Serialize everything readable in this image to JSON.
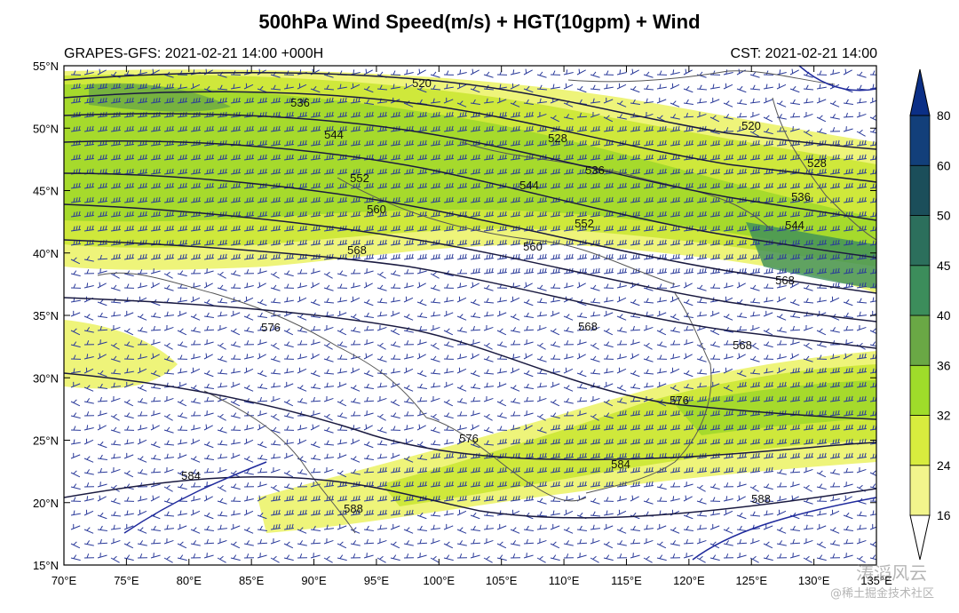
{
  "header": {
    "title": "500hPa Wind Speed(m/s) + HGT(10gpm) + Wind",
    "left_subtitle": "GRAPES-GFS: 2021-02-21 14:00 +000H",
    "right_subtitle": "CST: 2021-02-21 14:00"
  },
  "axes": {
    "lon_ticks": [
      "70°E",
      "75°E",
      "80°E",
      "85°E",
      "90°E",
      "95°E",
      "100°E",
      "105°E",
      "110°E",
      "115°E",
      "120°E",
      "125°E",
      "130°E",
      "135°E"
    ],
    "lat_ticks": [
      "55°N",
      "50°N",
      "45°N",
      "40°N",
      "35°N",
      "30°N",
      "25°N",
      "20°N",
      "15°N"
    ],
    "lon_range": [
      70,
      135
    ],
    "lat_range": [
      15,
      55
    ]
  },
  "colorbar": {
    "levels": [
      "16",
      "24",
      "32",
      "36",
      "40",
      "45",
      "50",
      "60",
      "80"
    ],
    "colors": [
      "#ffffff",
      "#f2f58c",
      "#d8ec3e",
      "#9fdc2a",
      "#6aa845",
      "#3c8d5b",
      "#2c6f5c",
      "#1b4e5a",
      "#123f7a",
      "#0b2f86"
    ]
  },
  "contours": [
    {
      "label": "520"
    },
    {
      "label": "528"
    },
    {
      "label": "536"
    },
    {
      "label": "544"
    },
    {
      "label": "552"
    },
    {
      "label": "560"
    },
    {
      "label": "568"
    },
    {
      "label": "576"
    },
    {
      "label": "584"
    },
    {
      "label": "588"
    }
  ],
  "watermark": {
    "line1": "涛滔风云",
    "line2": "@稀土掘金技术社区"
  }
}
